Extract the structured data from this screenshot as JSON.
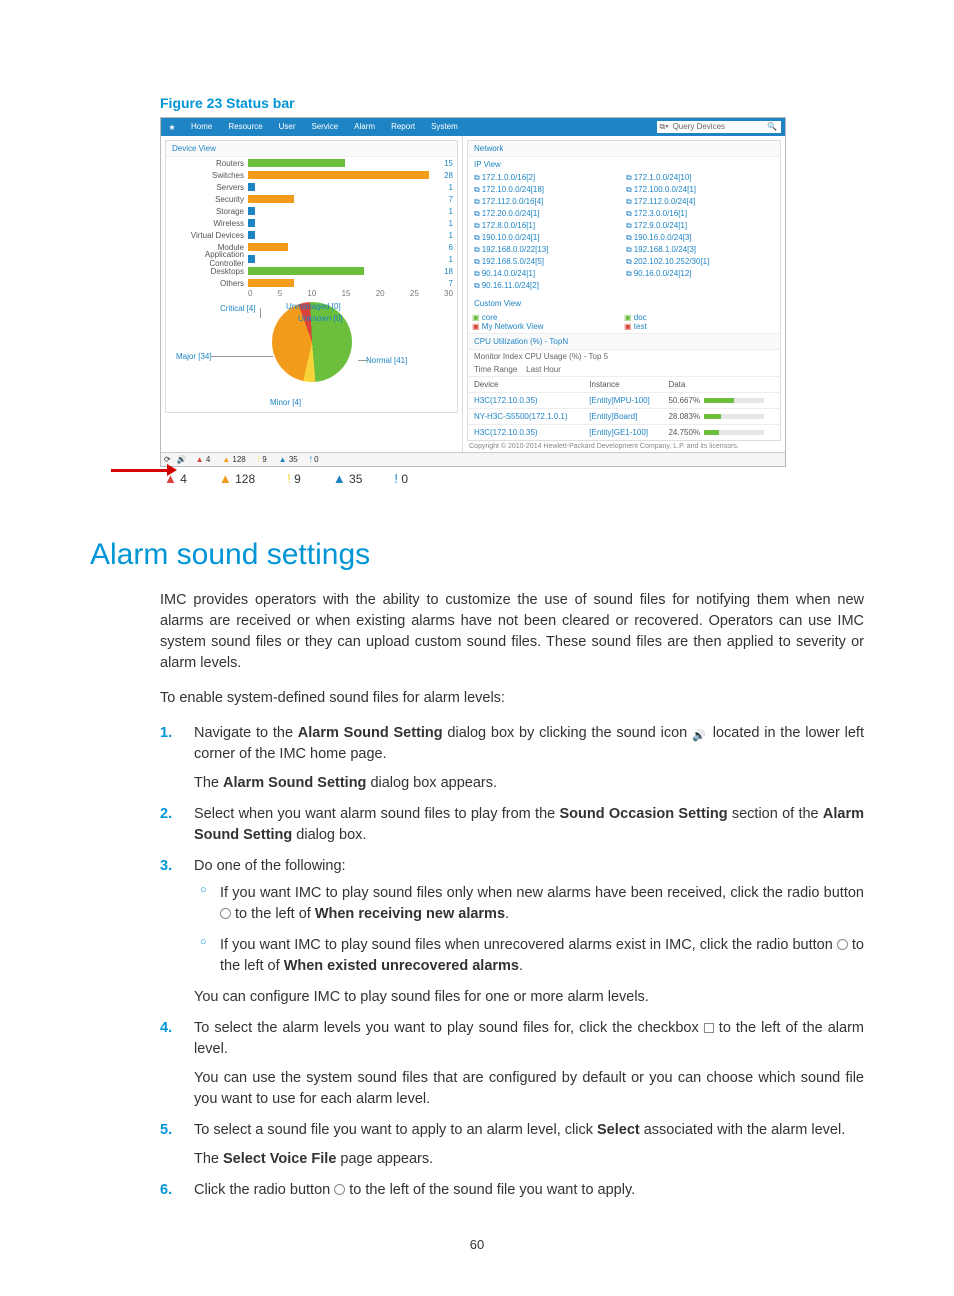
{
  "figure": {
    "caption": "Figure 23 Status bar"
  },
  "screenshot": {
    "nav": [
      "Home",
      "Resource",
      "User",
      "Service",
      "Alarm",
      "Report",
      "System"
    ],
    "search_placeholder": "Query Devices",
    "device_view": {
      "title": "Device View",
      "categories": [
        "Routers",
        "Switches",
        "Servers",
        "Security",
        "Storage",
        "Wireless",
        "Virtual Devices",
        "Module",
        "Application Controller",
        "Desktops",
        "Others"
      ],
      "values": [
        15,
        28,
        1,
        7,
        1,
        1,
        1,
        6,
        1,
        18,
        7
      ],
      "max": 30,
      "axis_ticks": [
        "0",
        "5",
        "10",
        "15",
        "20",
        "25",
        "30"
      ],
      "bar_colors": {
        "green": "#6cbf3c",
        "orange": "#f39b1b",
        "blue": "#1e84c4",
        "red": "#d9433b"
      }
    },
    "pie": {
      "segments": [
        {
          "label": "Critical [4]",
          "color": "#d9433b",
          "value": 4
        },
        {
          "label": "Unmanaged [0]",
          "color": "#666666",
          "value": 0
        },
        {
          "label": "Unknown [0]",
          "color": "#666666",
          "value": 0
        },
        {
          "label": "Normal [41]",
          "color": "#6cbf3c",
          "value": 41
        },
        {
          "label": "Minor [4]",
          "color": "#f7d53a",
          "value": 4
        },
        {
          "label": "Major [34]",
          "color": "#f39b1b",
          "value": 34
        }
      ]
    },
    "network_panel": {
      "title": "Network",
      "ip_view_title": "IP View",
      "ip_left": [
        "172.1.0.0/16[2]",
        "172.10.0.0/24[18]",
        "172.112.0.0/16[4]",
        "172.20.0.0/24[1]",
        "172.8.0.0/16[1]",
        "190.10.0.0/24[1]",
        "192.168.0.0/22[13]",
        "192.168.5.0/24[5]",
        "90.14.0.0/24[1]",
        "90.16.11.0/24[2]"
      ],
      "ip_right": [
        "172.1.0.0/24[10]",
        "172.100.0.0/24[1]",
        "172.112.0.0/24[4]",
        "172.3.0.0/16[1]",
        "172.9.0.0/24[1]",
        "190.16.0.0/24[3]",
        "192.168.1.0/24[3]",
        "202.102.10.252/30[1]",
        "90.16.0.0/24[12]"
      ],
      "custom_view_title": "Custom View",
      "custom_left": [
        "core",
        "My Network View"
      ],
      "custom_right": [
        "doc",
        "test"
      ]
    },
    "cpu_panel": {
      "title": "CPU Utilization (%) - TopN",
      "meta1": "Monitor Index   CPU Usage (%) - Top 5",
      "meta2_label": "Time Range",
      "meta2_value": "Last Hour",
      "columns": [
        "Device",
        "Instance",
        "Data"
      ],
      "rows": [
        {
          "device": "H3C(172.10.0.35)",
          "instance": "[Entity]MPU-100]",
          "data": "50.667%",
          "pct": 50.7,
          "color": "#6cbf3c"
        },
        {
          "device": "NY-H3C-S5500(172.1.0.1)",
          "instance": "[Entity]Board]",
          "data": "28.083%",
          "pct": 28.1,
          "color": "#6cbf3c"
        },
        {
          "device": "H3C(172.10.0.35)",
          "instance": "[Entity]GE1-100]",
          "data": "24.750%",
          "pct": 24.8,
          "color": "#6cbf3c"
        }
      ]
    },
    "copyright": "Copyright © 2010-2014 Hewlett-Packard Development Company, L.P. and its licensors.",
    "status_bar": [
      {
        "glyph": "▲",
        "color": "#d9433b",
        "value": "4"
      },
      {
        "glyph": "▲",
        "color": "#f39b1b",
        "value": "128"
      },
      {
        "glyph": "!",
        "color": "#f7d53a",
        "value": "9"
      },
      {
        "glyph": "▲",
        "color": "#1e84c4",
        "value": "35"
      },
      {
        "glyph": "!",
        "color": "#1e84c4",
        "value": "0"
      }
    ]
  },
  "zoom_status": [
    {
      "glyph": "▲",
      "color": "#d9433b",
      "value": "4"
    },
    {
      "glyph": "▲",
      "color": "#f39b1b",
      "value": "128"
    },
    {
      "glyph": "!",
      "color": "#f7d53a",
      "value": "9"
    },
    {
      "glyph": "▲",
      "color": "#1e84c4",
      "value": "35"
    },
    {
      "glyph": "!",
      "color": "#1e84c4",
      "value": "0"
    }
  ],
  "doc": {
    "heading": "Alarm sound settings",
    "intro": "IMC provides operators with the ability to customize the use of sound files for notifying them when new alarms are received or when existing alarms have not been cleared or recovered. Operators can use IMC system sound files or they can upload custom sound files. These sound files are then applied to severity or alarm levels.",
    "intro2": "To enable system-defined sound files for alarm levels:",
    "step1_a": "Navigate to the ",
    "step1_b": "Alarm Sound Setting",
    "step1_c": " dialog box by clicking the sound icon",
    "step1_d": " located in the lower left corner of the IMC home page.",
    "step1_sub_a": "The ",
    "step1_sub_b": "Alarm Sound Setting",
    "step1_sub_c": " dialog box appears.",
    "step2_a": "Select when you want alarm sound files to play from the ",
    "step2_b": "Sound Occasion Setting",
    "step2_c": " section of the ",
    "step2_d": "Alarm Sound Setting",
    "step2_e": " dialog box.",
    "step3": "Do one of the following:",
    "step3_b1_a": "If you want IMC to play sound files only when new alarms have been received, click the radio button ",
    "step3_b1_b": " to the left of ",
    "step3_b1_c": "When receiving new alarms",
    "step3_b2_a": "If you want IMC to play sound files when unrecovered alarms exist in IMC, click the radio button ",
    "step3_b2_b": " to the left of ",
    "step3_b2_c": "When existed unrecovered alarms",
    "step3_tail": "You can configure IMC to play sound files for one or more alarm levels.",
    "step4_a": "To select the alarm levels you want to play sound files for, click the checkbox ",
    "step4_b": " to the left of the alarm level.",
    "step4_sub": "You can use the system sound files that are configured by default or you can choose which sound file you want to use for each alarm level.",
    "step5_a": "To select a sound file you want to apply to an alarm level, click ",
    "step5_b": "Select",
    "step5_c": " associated with the alarm level.",
    "step5_sub_a": "The ",
    "step5_sub_b": "Select Voice File",
    "step5_sub_c": " page appears.",
    "step6_a": "Click the radio button ",
    "step6_b": " to the left of the sound file you want to apply."
  },
  "page_number": "60"
}
